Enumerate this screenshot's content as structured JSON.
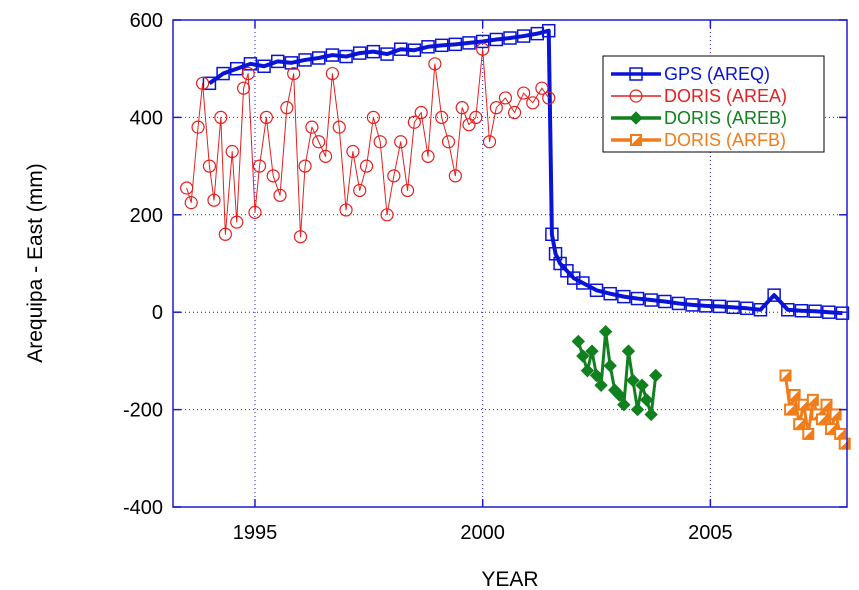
{
  "chart_data": {
    "type": "scatter",
    "title": "",
    "xlabel": "YEAR",
    "ylabel": "Arequipa - East (mm)",
    "xlim": [
      1993.2,
      2008.0
    ],
    "ylim": [
      -400,
      600
    ],
    "xticks": [
      1995,
      2000,
      2005
    ],
    "yticks": [
      -400,
      -200,
      0,
      200,
      400,
      600
    ],
    "grid": "dotted",
    "legend_position": "top-right",
    "series": [
      {
        "name": "GPS (AREQ)",
        "color": "#0a14d6",
        "marker": "square",
        "points": [
          [
            1994.0,
            470
          ],
          [
            1994.3,
            490
          ],
          [
            1994.6,
            500
          ],
          [
            1994.9,
            510
          ],
          [
            1995.2,
            505
          ],
          [
            1995.5,
            515
          ],
          [
            1995.8,
            512
          ],
          [
            1996.1,
            518
          ],
          [
            1996.4,
            522
          ],
          [
            1996.7,
            528
          ],
          [
            1997.0,
            525
          ],
          [
            1997.3,
            532
          ],
          [
            1997.6,
            535
          ],
          [
            1997.9,
            530
          ],
          [
            1998.2,
            540
          ],
          [
            1998.5,
            538
          ],
          [
            1998.8,
            545
          ],
          [
            1999.1,
            548
          ],
          [
            1999.4,
            550
          ],
          [
            1999.7,
            553
          ],
          [
            2000.0,
            556
          ],
          [
            2000.3,
            560
          ],
          [
            2000.6,
            563
          ],
          [
            2000.9,
            567
          ],
          [
            2001.2,
            572
          ],
          [
            2001.45,
            578
          ],
          [
            2001.52,
            160
          ],
          [
            2001.6,
            120
          ],
          [
            2001.7,
            100
          ],
          [
            2001.85,
            85
          ],
          [
            2002.0,
            70
          ],
          [
            2002.2,
            60
          ],
          [
            2002.5,
            45
          ],
          [
            2002.8,
            38
          ],
          [
            2003.1,
            32
          ],
          [
            2003.4,
            28
          ],
          [
            2003.7,
            25
          ],
          [
            2004.0,
            22
          ],
          [
            2004.3,
            18
          ],
          [
            2004.6,
            15
          ],
          [
            2004.9,
            13
          ],
          [
            2005.2,
            12
          ],
          [
            2005.5,
            10
          ],
          [
            2005.8,
            8
          ],
          [
            2006.1,
            5
          ],
          [
            2006.4,
            35
          ],
          [
            2006.7,
            5
          ],
          [
            2007.0,
            3
          ],
          [
            2007.3,
            2
          ],
          [
            2007.6,
            0
          ],
          [
            2007.9,
            -2
          ]
        ]
      },
      {
        "name": "DORIS (AREA)",
        "color": "#e51f1f",
        "marker": "circle",
        "points": [
          [
            1993.5,
            255
          ],
          [
            1993.6,
            225
          ],
          [
            1993.75,
            380
          ],
          [
            1993.85,
            470
          ],
          [
            1994.0,
            300
          ],
          [
            1994.1,
            230
          ],
          [
            1994.25,
            400
          ],
          [
            1994.35,
            160
          ],
          [
            1994.5,
            330
          ],
          [
            1994.6,
            185
          ],
          [
            1994.75,
            460
          ],
          [
            1994.85,
            490
          ],
          [
            1995.0,
            205
          ],
          [
            1995.1,
            300
          ],
          [
            1995.25,
            400
          ],
          [
            1995.4,
            280
          ],
          [
            1995.55,
            240
          ],
          [
            1995.7,
            420
          ],
          [
            1995.85,
            490
          ],
          [
            1996.0,
            155
          ],
          [
            1996.1,
            300
          ],
          [
            1996.25,
            380
          ],
          [
            1996.4,
            350
          ],
          [
            1996.55,
            320
          ],
          [
            1996.7,
            490
          ],
          [
            1996.85,
            380
          ],
          [
            1997.0,
            210
          ],
          [
            1997.15,
            330
          ],
          [
            1997.3,
            250
          ],
          [
            1997.45,
            300
          ],
          [
            1997.6,
            400
          ],
          [
            1997.75,
            350
          ],
          [
            1997.9,
            200
          ],
          [
            1998.05,
            280
          ],
          [
            1998.2,
            350
          ],
          [
            1998.35,
            250
          ],
          [
            1998.5,
            390
          ],
          [
            1998.65,
            410
          ],
          [
            1998.8,
            320
          ],
          [
            1998.95,
            510
          ],
          [
            1999.1,
            400
          ],
          [
            1999.25,
            350
          ],
          [
            1999.4,
            280
          ],
          [
            1999.55,
            420
          ],
          [
            1999.7,
            385
          ],
          [
            1999.85,
            400
          ],
          [
            2000.0,
            540
          ],
          [
            2000.15,
            350
          ],
          [
            2000.3,
            420
          ],
          [
            2000.5,
            440
          ],
          [
            2000.7,
            410
          ],
          [
            2000.9,
            450
          ],
          [
            2001.1,
            430
          ],
          [
            2001.3,
            460
          ],
          [
            2001.45,
            440
          ]
        ]
      },
      {
        "name": "DORIS (AREB)",
        "color": "#11801f",
        "marker": "diamond",
        "points": [
          [
            2002.1,
            -60
          ],
          [
            2002.2,
            -90
          ],
          [
            2002.3,
            -120
          ],
          [
            2002.4,
            -80
          ],
          [
            2002.5,
            -130
          ],
          [
            2002.6,
            -150
          ],
          [
            2002.7,
            -40
          ],
          [
            2002.8,
            -110
          ],
          [
            2002.9,
            -160
          ],
          [
            2003.0,
            -170
          ],
          [
            2003.1,
            -190
          ],
          [
            2003.2,
            -80
          ],
          [
            2003.3,
            -140
          ],
          [
            2003.4,
            -200
          ],
          [
            2003.5,
            -150
          ],
          [
            2003.6,
            -180
          ],
          [
            2003.7,
            -210
          ],
          [
            2003.8,
            -130
          ]
        ]
      },
      {
        "name": "DORIS (ARFB)",
        "color": "#f07c1a",
        "marker": "half-square",
        "points": [
          [
            2006.65,
            -130
          ],
          [
            2006.75,
            -200
          ],
          [
            2006.85,
            -170
          ],
          [
            2006.95,
            -230
          ],
          [
            2007.05,
            -190
          ],
          [
            2007.15,
            -250
          ],
          [
            2007.25,
            -180
          ],
          [
            2007.35,
            -210
          ],
          [
            2007.45,
            -220
          ],
          [
            2007.55,
            -190
          ],
          [
            2007.65,
            -240
          ],
          [
            2007.75,
            -210
          ],
          [
            2007.85,
            -250
          ],
          [
            2007.95,
            -270
          ]
        ]
      }
    ]
  }
}
